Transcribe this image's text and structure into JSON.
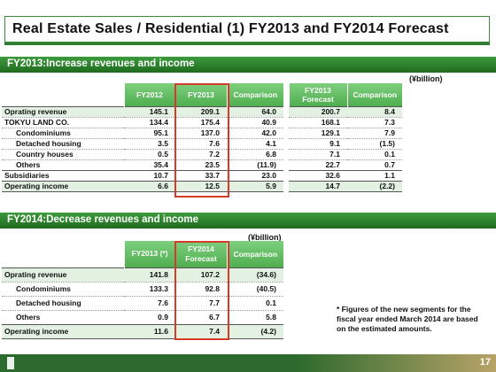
{
  "title": "Real Estate Sales / Residential (1) FY2013 and FY2014 Forecast",
  "section1": {
    "heading": "FY2013:Increase revenues and income",
    "unit": "(¥billion)",
    "headers": [
      "FY2012",
      "FY2013",
      "Comparison",
      "FY2013 Forecast",
      "Comparison"
    ],
    "rows": [
      {
        "label": "Oprating revenue",
        "v": [
          "145.1",
          "209.1",
          "64.0",
          "200.7",
          "8.4"
        ]
      },
      {
        "label": "TOKYU LAND CO.",
        "v": [
          "134.4",
          "175.4",
          "40.9",
          "168.1",
          "7.3"
        ]
      },
      {
        "label": "Condominiums",
        "v": [
          "95.1",
          "137.0",
          "42.0",
          "129.1",
          "7.9"
        ]
      },
      {
        "label": "Detached housing",
        "v": [
          "3.5",
          "7.6",
          "4.1",
          "9.1",
          "(1.5)"
        ]
      },
      {
        "label": "Country houses",
        "v": [
          "0.5",
          "7.2",
          "6.8",
          "7.1",
          "0.1"
        ]
      },
      {
        "label": "Others",
        "v": [
          "35.4",
          "23.5",
          "(11.9)",
          "22.7",
          "0.7"
        ]
      },
      {
        "label": "Subsidiaries",
        "v": [
          "10.7",
          "33.7",
          "23.0",
          "32.6",
          "1.1"
        ]
      },
      {
        "label": "Operating income",
        "v": [
          "6.6",
          "12.5",
          "5.9",
          "14.7",
          "(2.2)"
        ]
      }
    ]
  },
  "section2": {
    "heading": "FY2014:Decrease revenues and income",
    "unit": "(¥billion)",
    "headers": [
      "FY2013 (*)",
      "FY2014 Forecast",
      "Comparison"
    ],
    "rows": [
      {
        "label": "Oprating revenue",
        "v": [
          "141.8",
          "107.2",
          "(34.6)"
        ]
      },
      {
        "label": "Condominiums",
        "v": [
          "133.3",
          "92.8",
          "(40.5)"
        ]
      },
      {
        "label": "Detached housing",
        "v": [
          "7.6",
          "7.7",
          "0.1"
        ]
      },
      {
        "label": "Others",
        "v": [
          "0.9",
          "6.7",
          "5.8"
        ]
      },
      {
        "label": "Operating income",
        "v": [
          "11.6",
          "7.4",
          "(4.2)"
        ]
      }
    ]
  },
  "note": "* Figures of the new segments for the fiscal year ended March 2014 are based on the estimated amounts.",
  "page_number": "17"
}
